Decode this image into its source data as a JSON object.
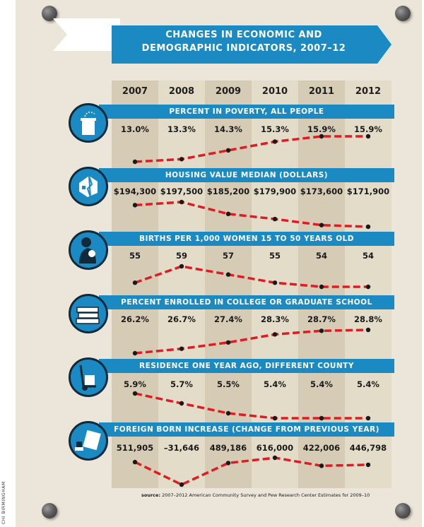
{
  "title": [
    "CHANGES IN ECONOMIC AND",
    "DEMOGRAPHIC INDICATORS, 2007–12"
  ],
  "credit": "CHI BIRMINGHAM",
  "source_label": "source:",
  "source_text": "2007–2012 American Community Survey and Pew Research Center Estimates for 2009–10",
  "colors": {
    "banner": "#1b8ac2",
    "line": "#e11b22",
    "board": "#ebe6d9",
    "column_shade": "#d6ccb5"
  },
  "chart_data": {
    "type": "line",
    "x": [
      "2007",
      "2008",
      "2009",
      "2010",
      "2011",
      "2012"
    ],
    "series": [
      {
        "name": "PERCENT IN POVERTY, ALL PEOPLE",
        "icon": "trash-can-icon",
        "labels": [
          "13.0%",
          "13.3%",
          "14.3%",
          "15.3%",
          "15.9%",
          "15.9%"
        ],
        "values": [
          13.0,
          13.3,
          14.3,
          15.3,
          15.9,
          15.9
        ]
      },
      {
        "name": "HOUSING VALUE MEDIAN (DOLLARS)",
        "icon": "broken-house-icon",
        "labels": [
          "$194,300",
          "$197,500",
          "$185,200",
          "$179,900",
          "$173,600",
          "$171,900"
        ],
        "values": [
          194300,
          197500,
          185200,
          179900,
          173600,
          171900
        ]
      },
      {
        "name": "BIRTHS PER 1,000 WOMEN 15 TO 50 YEARS OLD",
        "icon": "mother-baby-icon",
        "labels": [
          "55",
          "59",
          "57",
          "55",
          "54",
          "54"
        ],
        "values": [
          55,
          59,
          57,
          55,
          54,
          54
        ]
      },
      {
        "name": "PERCENT ENROLLED IN COLLEGE OR GRADUATE SCHOOL",
        "icon": "books-icon",
        "labels": [
          "26.2%",
          "26.7%",
          "27.4%",
          "28.3%",
          "28.7%",
          "28.8%"
        ],
        "values": [
          26.2,
          26.7,
          27.4,
          28.3,
          28.7,
          28.8
        ]
      },
      {
        "name": "RESIDENCE ONE YEAR AGO, DIFFERENT COUNTY",
        "icon": "hand-truck-icon",
        "labels": [
          "5.9%",
          "5.7%",
          "5.5%",
          "5.4%",
          "5.4%",
          "5.4%"
        ],
        "values": [
          5.9,
          5.7,
          5.5,
          5.4,
          5.4,
          5.4
        ]
      },
      {
        "name": "FOREIGN BORN INCREASE (CHANGE FROM PREVIOUS YEAR)",
        "icon": "passport-stamp-icon",
        "labels": [
          "511,905",
          "–31,646",
          "489,186",
          "616,000",
          "422,006",
          "446,798"
        ],
        "values": [
          511905,
          -31646,
          489186,
          616000,
          422006,
          446798
        ]
      }
    ]
  }
}
